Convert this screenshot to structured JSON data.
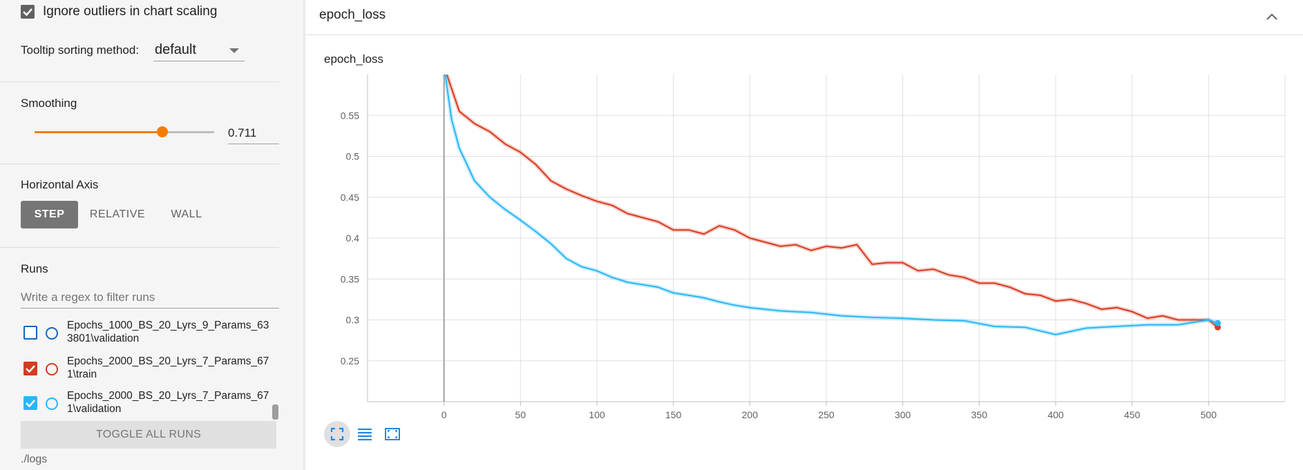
{
  "sidebar": {
    "ignore_outliers": {
      "label": "Ignore outliers in chart scaling",
      "checked": true
    },
    "tooltip_sorting": {
      "label": "Tooltip sorting method:",
      "value": "default"
    },
    "smoothing": {
      "label": "Smoothing",
      "value": "0.711",
      "fraction": 0.711
    },
    "horizontal_axis": {
      "label": "Horizontal Axis",
      "options": [
        "STEP",
        "RELATIVE",
        "WALL"
      ],
      "selected": "STEP"
    },
    "runs": {
      "label": "Runs",
      "filter_placeholder": "Write a regex to filter runs",
      "items": [
        {
          "name": "Epochs_1000_BS_20_Lyrs_9_Params_633801\\validation",
          "checked": false,
          "color": "#1565c0"
        },
        {
          "name": "Epochs_2000_BS_20_Lyrs_7_Params_671\\train",
          "checked": true,
          "color": "#d63b1f"
        },
        {
          "name": "Epochs_2000_BS_20_Lyrs_7_Params_671\\validation",
          "checked": true,
          "color": "#29b6f6"
        }
      ],
      "toggle_label": "TOGGLE ALL RUNS",
      "logdir": "./logs"
    },
    "accent_color": "#f57c00"
  },
  "card": {
    "header_title": "epoch_loss",
    "chart_title": "epoch_loss",
    "icons": [
      "chevron-up-icon",
      "fit-domain-icon",
      "toggle-log-icon",
      "zoom-reset-icon"
    ]
  },
  "chart_data": {
    "type": "line",
    "title": "epoch_loss",
    "xlabel": "",
    "ylabel": "",
    "xlim": [
      -50,
      550
    ],
    "ylim": [
      0.2,
      0.6
    ],
    "x_ticks": [
      0,
      50,
      100,
      150,
      200,
      250,
      300,
      350,
      400,
      450,
      500
    ],
    "y_ticks": [
      0.25,
      0.3,
      0.35,
      0.4,
      0.45,
      0.5,
      0.55
    ],
    "grid": true,
    "series": [
      {
        "name": "Epochs_2000_BS_20_Lyrs_7_Params_671\\train",
        "color": "#d63b1f",
        "x": [
          0,
          10,
          20,
          30,
          40,
          50,
          60,
          70,
          80,
          90,
          100,
          110,
          120,
          130,
          140,
          150,
          160,
          170,
          180,
          190,
          200,
          210,
          220,
          230,
          240,
          250,
          260,
          270,
          280,
          290,
          300,
          310,
          320,
          330,
          340,
          350,
          360,
          370,
          380,
          390,
          400,
          410,
          420,
          430,
          440,
          450,
          460,
          470,
          480,
          490,
          500,
          506
        ],
        "y": [
          0.61,
          0.555,
          0.54,
          0.53,
          0.515,
          0.505,
          0.49,
          0.47,
          0.46,
          0.452,
          0.445,
          0.44,
          0.43,
          0.425,
          0.42,
          0.41,
          0.41,
          0.405,
          0.415,
          0.41,
          0.4,
          0.395,
          0.39,
          0.392,
          0.385,
          0.39,
          0.388,
          0.392,
          0.368,
          0.37,
          0.37,
          0.36,
          0.362,
          0.355,
          0.352,
          0.345,
          0.345,
          0.34,
          0.332,
          0.33,
          0.323,
          0.325,
          0.32,
          0.313,
          0.315,
          0.31,
          0.302,
          0.305,
          0.3,
          0.3,
          0.3,
          0.291
        ]
      },
      {
        "name": "Epochs_2000_BS_20_Lyrs_7_Params_671\\validation",
        "color": "#29b6f6",
        "x": [
          0,
          5,
          10,
          20,
          30,
          40,
          50,
          60,
          70,
          80,
          90,
          100,
          110,
          120,
          130,
          140,
          150,
          160,
          170,
          180,
          190,
          200,
          220,
          240,
          260,
          280,
          300,
          320,
          340,
          360,
          380,
          400,
          420,
          440,
          460,
          480,
          500,
          506
        ],
        "y": [
          0.61,
          0.545,
          0.51,
          0.47,
          0.45,
          0.435,
          0.422,
          0.408,
          0.393,
          0.375,
          0.365,
          0.36,
          0.352,
          0.346,
          0.343,
          0.34,
          0.333,
          0.33,
          0.327,
          0.322,
          0.318,
          0.315,
          0.311,
          0.309,
          0.305,
          0.303,
          0.302,
          0.3,
          0.299,
          0.292,
          0.291,
          0.282,
          0.29,
          0.292,
          0.294,
          0.294,
          0.3,
          0.296
        ]
      }
    ]
  }
}
